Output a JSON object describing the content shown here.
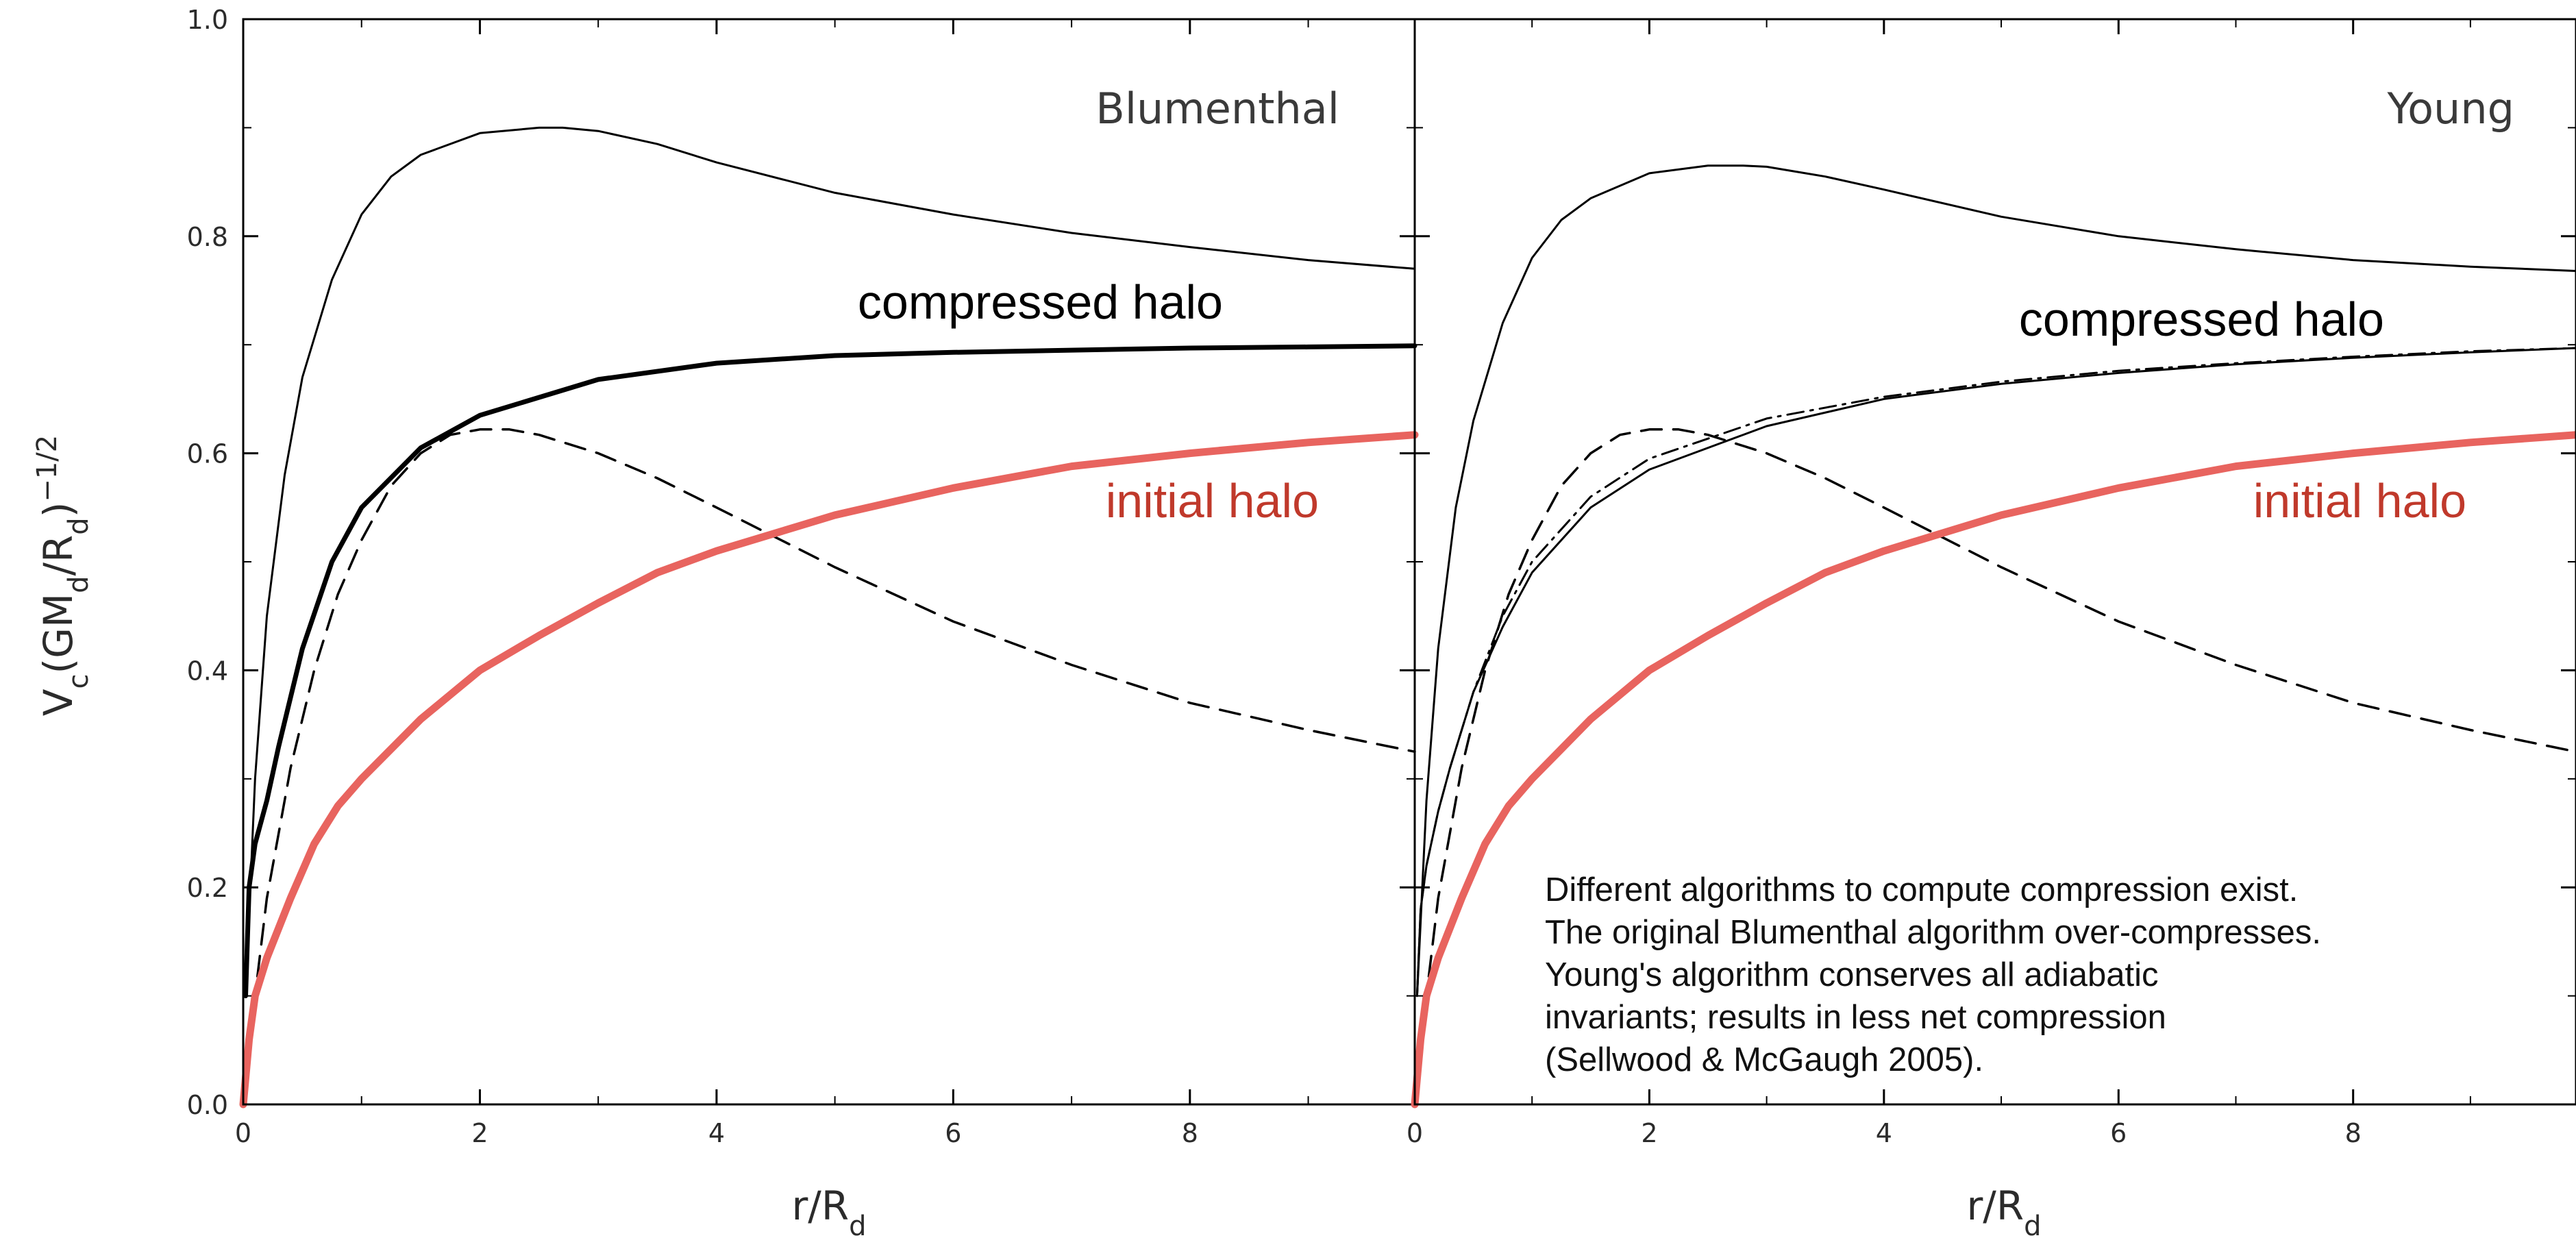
{
  "chart_data": [
    {
      "type": "line",
      "title": "Blumenthal",
      "xlabel": "r/R_d",
      "ylabel": "V_c(GM_d/R_d)^-1/2",
      "xlim": [
        0,
        9.9
      ],
      "ylim": [
        0,
        1.0
      ],
      "xticks": [
        0,
        2,
        4,
        6,
        8
      ],
      "yticks": [
        0.0,
        0.2,
        0.4,
        0.6,
        0.8,
        1.0
      ],
      "annotations": [
        {
          "text": "compressed halo",
          "color": "#000000"
        },
        {
          "text": "initial halo",
          "color": "#c0392b"
        }
      ],
      "series": [
        {
          "style": "thin-solid",
          "color": "#000000",
          "x": [
            0.02,
            0.1,
            0.2,
            0.35,
            0.5,
            0.75,
            1.0,
            1.25,
            1.5,
            2.0,
            2.5,
            2.7,
            3.0,
            3.5,
            4.0,
            5.0,
            6.0,
            7.0,
            8.0,
            9.0,
            9.9
          ],
          "y": [
            0.1,
            0.3,
            0.45,
            0.58,
            0.67,
            0.76,
            0.82,
            0.855,
            0.875,
            0.895,
            0.9,
            0.9,
            0.897,
            0.885,
            0.868,
            0.84,
            0.82,
            0.803,
            0.79,
            0.778,
            0.77
          ]
        },
        {
          "style": "thick-solid",
          "color": "#000000",
          "x": [
            0.02,
            0.05,
            0.1,
            0.2,
            0.3,
            0.5,
            0.75,
            1.0,
            1.5,
            2.0,
            3.0,
            4.0,
            5.0,
            6.0,
            7.0,
            8.0,
            9.0,
            9.9
          ],
          "y": [
            0.1,
            0.2,
            0.24,
            0.28,
            0.33,
            0.42,
            0.5,
            0.55,
            0.605,
            0.635,
            0.668,
            0.683,
            0.69,
            0.693,
            0.695,
            0.697,
            0.698,
            0.699
          ]
        },
        {
          "style": "dashed",
          "color": "#000000",
          "x": [
            0.0,
            0.1,
            0.2,
            0.4,
            0.6,
            0.8,
            1.0,
            1.25,
            1.5,
            1.75,
            2.0,
            2.25,
            2.5,
            3.0,
            3.5,
            4.0,
            5.0,
            6.0,
            7.0,
            8.0,
            9.0,
            9.9
          ],
          "y": [
            0.0,
            0.1,
            0.19,
            0.31,
            0.4,
            0.47,
            0.52,
            0.57,
            0.6,
            0.617,
            0.622,
            0.622,
            0.617,
            0.6,
            0.577,
            0.55,
            0.495,
            0.445,
            0.405,
            0.37,
            0.345,
            0.325
          ]
        },
        {
          "style": "thick-red",
          "color": "#e8645f",
          "x": [
            0.0,
            0.05,
            0.1,
            0.2,
            0.4,
            0.6,
            0.8,
            1.0,
            1.5,
            2.0,
            2.5,
            3.0,
            3.5,
            4.0,
            5.0,
            6.0,
            7.0,
            8.0,
            9.0,
            9.9
          ],
          "y": [
            0.0,
            0.06,
            0.1,
            0.135,
            0.19,
            0.24,
            0.275,
            0.3,
            0.355,
            0.4,
            0.432,
            0.462,
            0.49,
            0.51,
            0.543,
            0.568,
            0.588,
            0.6,
            0.61,
            0.617
          ]
        }
      ]
    },
    {
      "type": "line",
      "title": "Young",
      "xlabel": "r/R_d",
      "xlim": [
        0,
        9.9
      ],
      "ylim": [
        0,
        1.0
      ],
      "xticks": [
        0,
        2,
        4,
        6,
        8
      ],
      "annotations": [
        {
          "text": "compressed halo",
          "color": "#000000"
        },
        {
          "text": "initial halo",
          "color": "#c0392b"
        }
      ],
      "note": "Different algorithms to compute compression exist. The original Blumenthal algorithm over-compresses. Young's algorithm conserves all adiabatic invariants; results in less net compression (Sellwood & McGaugh 2005).",
      "series": [
        {
          "style": "thin-solid",
          "color": "#000000",
          "x": [
            0.02,
            0.1,
            0.2,
            0.35,
            0.5,
            0.75,
            1.0,
            1.25,
            1.5,
            2.0,
            2.5,
            2.8,
            3.0,
            3.5,
            4.0,
            5.0,
            6.0,
            7.0,
            8.0,
            9.0,
            9.9
          ],
          "y": [
            0.1,
            0.28,
            0.42,
            0.55,
            0.63,
            0.72,
            0.78,
            0.815,
            0.835,
            0.858,
            0.865,
            0.865,
            0.864,
            0.855,
            0.843,
            0.818,
            0.8,
            0.788,
            0.778,
            0.772,
            0.768
          ]
        },
        {
          "style": "thin-solid",
          "color": "#000000",
          "x": [
            0.02,
            0.05,
            0.1,
            0.2,
            0.3,
            0.5,
            0.75,
            1.0,
            1.5,
            2.0,
            3.0,
            4.0,
            5.0,
            6.0,
            7.0,
            8.0,
            9.0,
            9.9
          ],
          "y": [
            0.1,
            0.18,
            0.22,
            0.27,
            0.31,
            0.38,
            0.44,
            0.49,
            0.55,
            0.585,
            0.625,
            0.65,
            0.664,
            0.674,
            0.682,
            0.688,
            0.693,
            0.697
          ]
        },
        {
          "style": "dashdot",
          "color": "#000000",
          "x": [
            0.02,
            0.05,
            0.1,
            0.2,
            0.3,
            0.5,
            0.75,
            1.0,
            1.5,
            2.0,
            3.0,
            4.0,
            5.0,
            6.0,
            7.0,
            8.0,
            9.0,
            9.9
          ],
          "y": [
            0.1,
            0.18,
            0.22,
            0.27,
            0.31,
            0.38,
            0.45,
            0.5,
            0.56,
            0.595,
            0.632,
            0.652,
            0.666,
            0.676,
            0.683,
            0.689,
            0.694,
            0.697
          ]
        },
        {
          "style": "dashed",
          "color": "#000000",
          "x": [
            0.0,
            0.1,
            0.2,
            0.4,
            0.6,
            0.8,
            1.0,
            1.25,
            1.5,
            1.75,
            2.0,
            2.25,
            2.5,
            3.0,
            3.5,
            4.0,
            5.0,
            6.0,
            7.0,
            8.0,
            9.0,
            9.9
          ],
          "y": [
            0.0,
            0.1,
            0.19,
            0.31,
            0.4,
            0.47,
            0.52,
            0.57,
            0.6,
            0.617,
            0.622,
            0.622,
            0.617,
            0.6,
            0.577,
            0.55,
            0.495,
            0.445,
            0.405,
            0.37,
            0.345,
            0.325
          ]
        },
        {
          "style": "thick-red",
          "color": "#e8645f",
          "x": [
            0.0,
            0.05,
            0.1,
            0.2,
            0.4,
            0.6,
            0.8,
            1.0,
            1.5,
            2.0,
            2.5,
            3.0,
            3.5,
            4.0,
            5.0,
            6.0,
            7.0,
            8.0,
            9.0,
            9.9
          ],
          "y": [
            0.0,
            0.06,
            0.1,
            0.135,
            0.19,
            0.24,
            0.275,
            0.3,
            0.355,
            0.4,
            0.432,
            0.462,
            0.49,
            0.51,
            0.543,
            0.568,
            0.588,
            0.6,
            0.61,
            0.617
          ]
        }
      ]
    }
  ]
}
